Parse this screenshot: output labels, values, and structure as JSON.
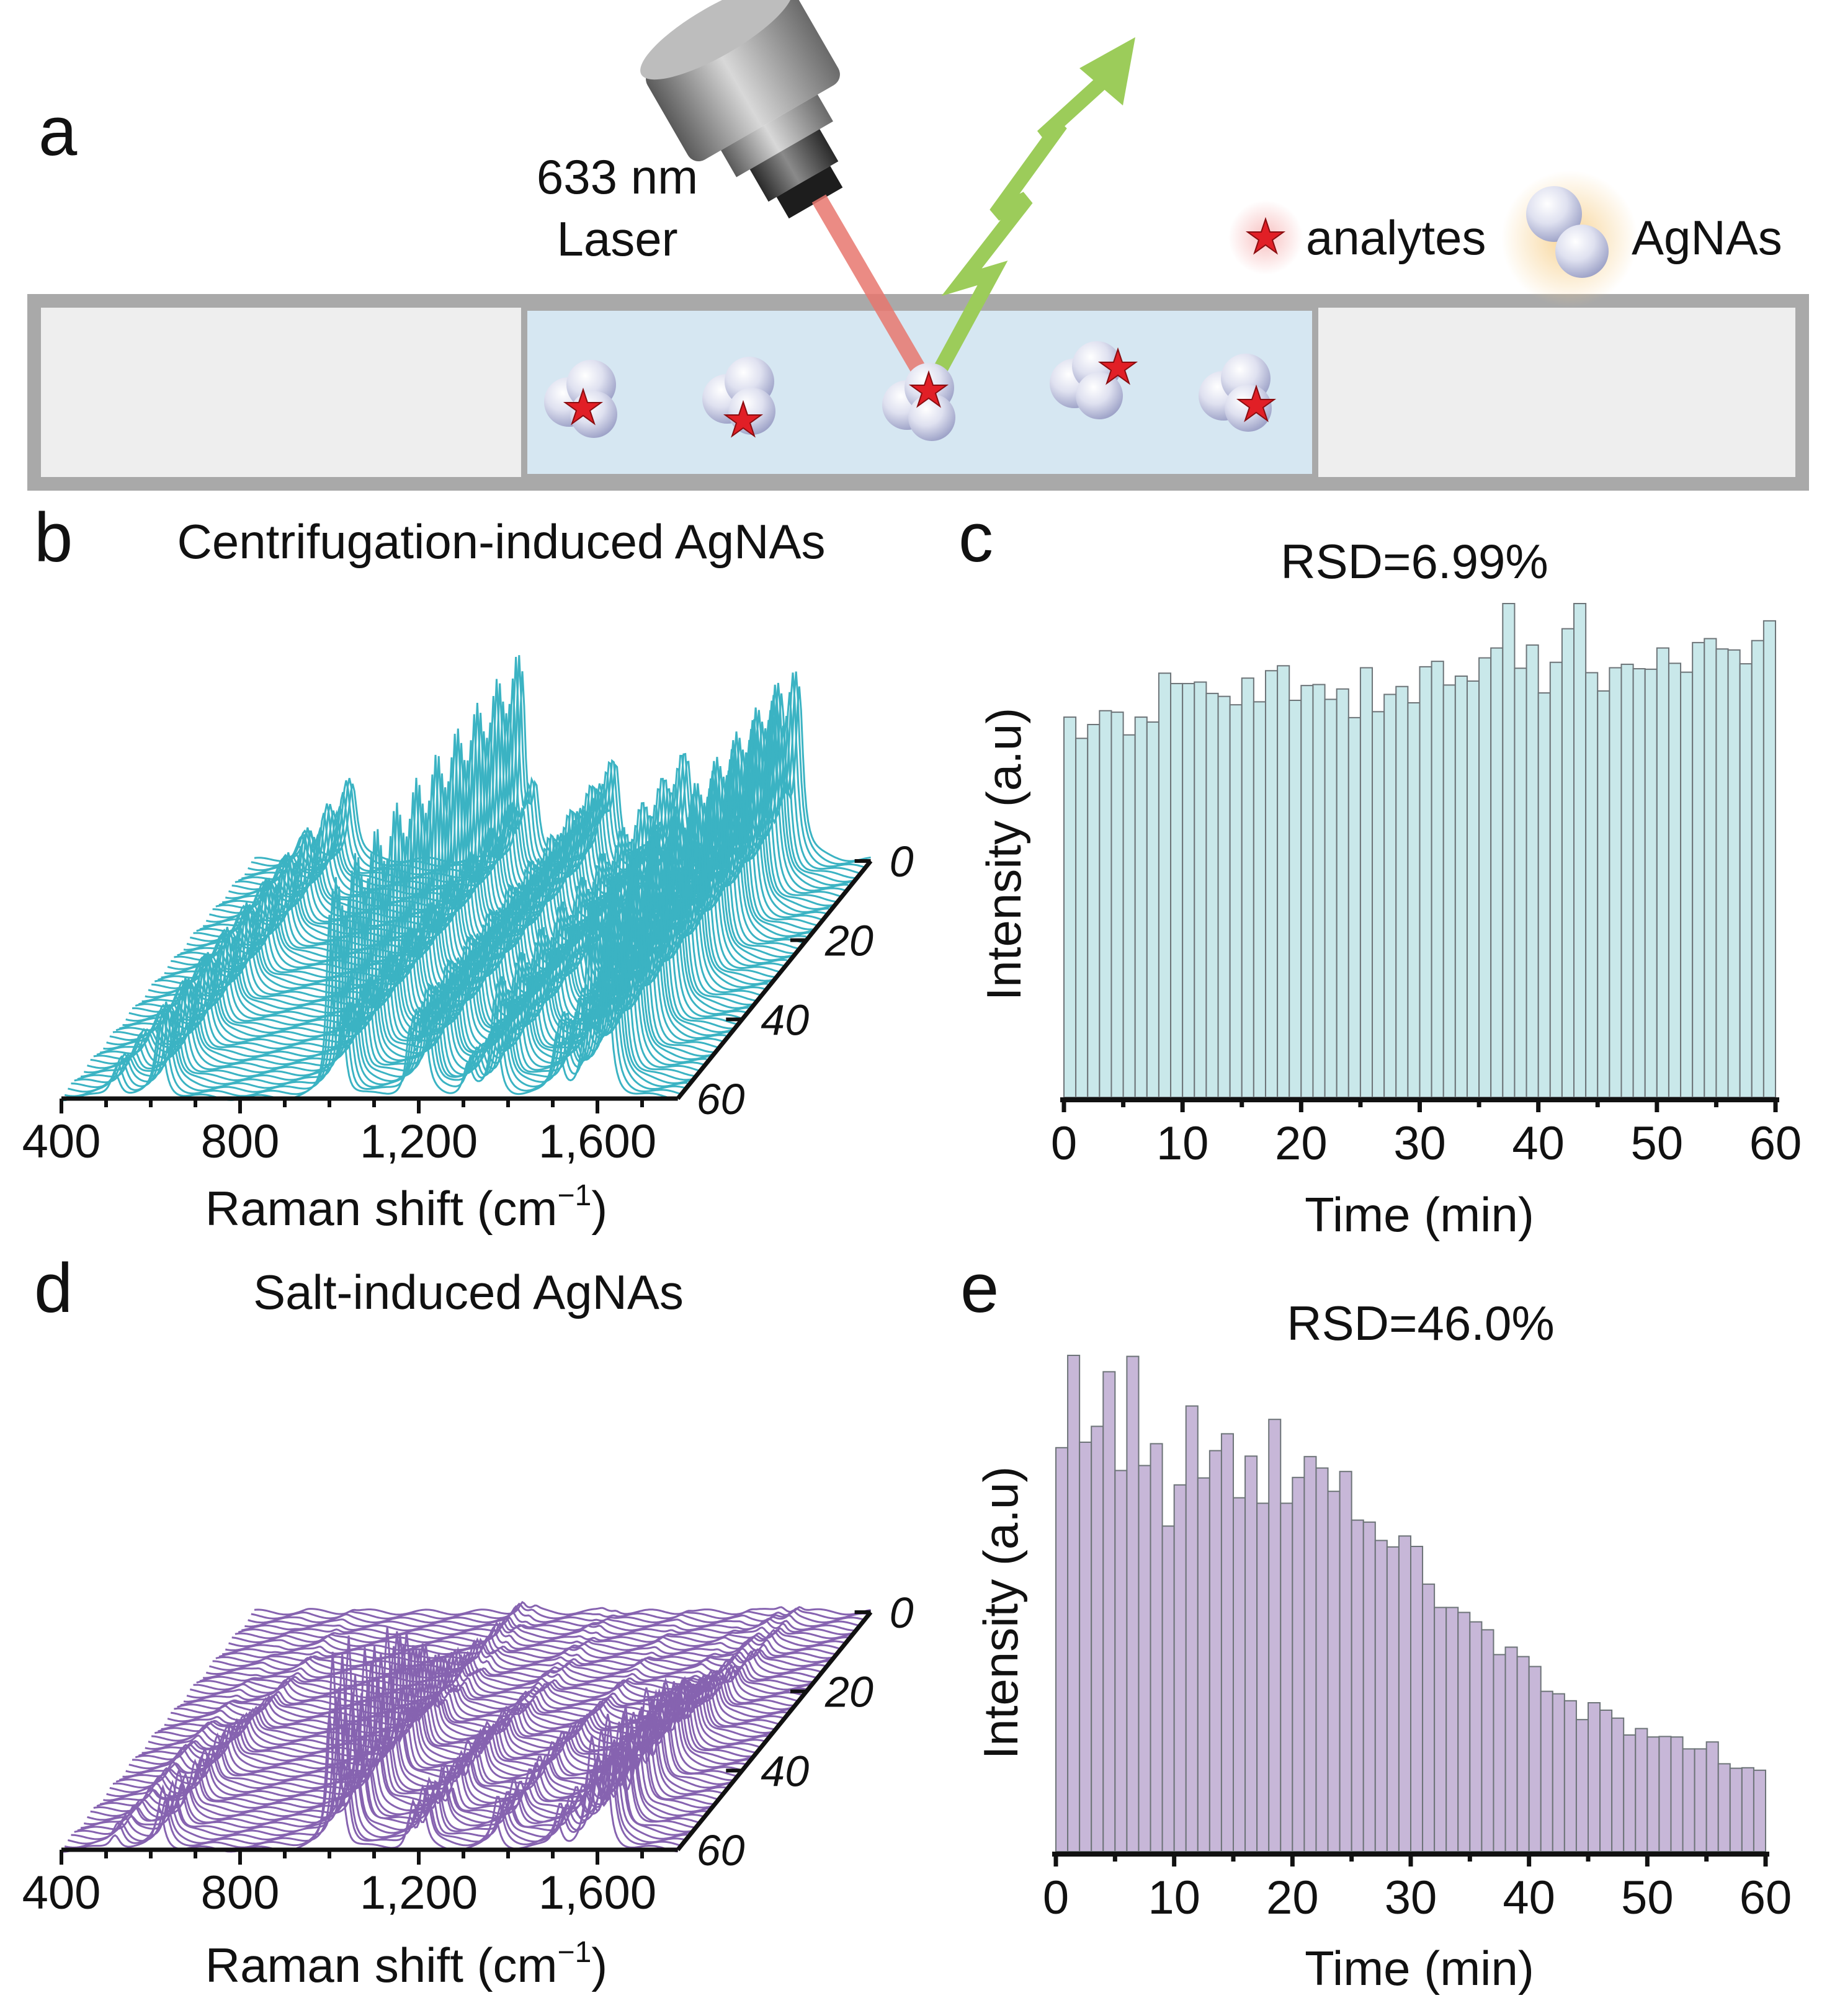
{
  "panel_a": {
    "label": "a",
    "laser_line1": "633 nm",
    "laser_line2": "Laser",
    "legend_analytes": "analytes",
    "legend_agnas": "AgNAs",
    "colors": {
      "beam": "#e8776e",
      "scatter": "#9ccc5a",
      "star": "#e11f26",
      "solution": "#d6e7f2",
      "channel": "#a9a9a9"
    }
  },
  "chart_data": [
    {
      "id": "b",
      "panel_label": "b",
      "type": "waterfall",
      "title": "Centrifugation-induced AgNAs",
      "xlabel": "Raman shift (cm⁻¹)",
      "xlabel_main": "Raman shift (cm",
      "xlabel_sup": "−1",
      "xlabel_close": ")",
      "xlim": [
        400,
        1780
      ],
      "xticks": [
        "400",
        "800",
        "1,200",
        "1,600"
      ],
      "xtick_values": [
        400,
        800,
        1200,
        1600
      ],
      "zticks": [
        "0",
        "20",
        "40",
        "60"
      ],
      "ztick_values": [
        0,
        20,
        40,
        60
      ],
      "zlim": [
        0,
        60
      ],
      "peaks_cm1": [
        [
          520,
          0.15,
          14
        ],
        [
          620,
          0.42,
          12
        ],
        [
          1000,
          1.0,
          8
        ],
        [
          1030,
          0.35,
          9
        ],
        [
          1180,
          0.35,
          10
        ],
        [
          1210,
          0.5,
          10
        ],
        [
          1310,
          0.18,
          12
        ],
        [
          1370,
          0.55,
          10
        ],
        [
          1510,
          0.35,
          12
        ],
        [
          1580,
          0.85,
          10
        ],
        [
          1620,
          0.9,
          10
        ]
      ],
      "intensity_trend": "constant",
      "color": "#3bb3c3"
    },
    {
      "id": "c",
      "panel_label": "c",
      "type": "bar",
      "title": "RSD=6.99%",
      "xlabel": "Time (min)",
      "ylabel": "Intensity (a.u)",
      "xlim": [
        0,
        60
      ],
      "xticks": [
        "0",
        "10",
        "20",
        "30",
        "40",
        "50",
        "60"
      ],
      "ylim": [
        0,
        100
      ],
      "values": [
        77.0,
        72.7,
        75.5,
        78.3,
        78.0,
        73.4,
        77.0,
        76.0,
        85.9,
        83.8,
        83.8,
        84.1,
        81.8,
        81.2,
        79.5,
        84.9,
        80.1,
        86.4,
        87.4,
        80.4,
        83.4,
        83.6,
        80.6,
        82.7,
        76.9,
        87.0,
        78.1,
        81.6,
        83.2,
        79.9,
        87.2,
        88.3,
        83.5,
        85.3,
        84.3,
        89.0,
        91.0,
        100,
        86.9,
        91.6,
        81.9,
        88.1,
        94.9,
        100,
        86.0,
        82.3,
        87.0,
        87.7,
        86.8,
        86.7,
        91.0,
        87.9,
        86.1,
        92.1,
        92.9,
        90.8,
        90.6,
        87.8,
        92.5,
        96.5
      ],
      "color": "#c9e8ea"
    },
    {
      "id": "d",
      "panel_label": "d",
      "type": "waterfall",
      "title": "Salt-induced AgNAs",
      "xlabel_main": "Raman shift (cm",
      "xlabel_sup": "−1",
      "xlabel_close": ")",
      "xlim": [
        400,
        1780
      ],
      "xticks": [
        "400",
        "800",
        "1,200",
        "1,600"
      ],
      "xtick_values": [
        400,
        800,
        1200,
        1600
      ],
      "zticks": [
        "0",
        "20",
        "40",
        "60"
      ],
      "ztick_values": [
        0,
        20,
        40,
        60
      ],
      "zlim": [
        0,
        60
      ],
      "peaks_cm1": [
        [
          520,
          0.12,
          14
        ],
        [
          620,
          0.3,
          12
        ],
        [
          1000,
          1.0,
          9
        ],
        [
          1030,
          0.35,
          9
        ],
        [
          1180,
          0.22,
          10
        ],
        [
          1210,
          0.28,
          10
        ],
        [
          1370,
          0.25,
          12
        ],
        [
          1510,
          0.2,
          12
        ],
        [
          1580,
          0.55,
          12
        ],
        [
          1620,
          0.6,
          10
        ]
      ],
      "intensity_trend": "decreasing",
      "color": "#8663b0"
    },
    {
      "id": "e",
      "panel_label": "e",
      "type": "bar",
      "title": "RSD=46.0%",
      "xlabel": "Time (min)",
      "ylabel": "Intensity (a.u)",
      "xlim": [
        0,
        60
      ],
      "xticks": [
        "0",
        "10",
        "20",
        "30",
        "40",
        "50",
        "60"
      ],
      "ylim": [
        0,
        100
      ],
      "values": [
        81.4,
        100,
        82.5,
        85.7,
        96.7,
        76.8,
        99.8,
        77.8,
        82.2,
        65.6,
        73.9,
        89.8,
        75.3,
        80.8,
        84.2,
        71.3,
        79.7,
        70.2,
        87.1,
        70.2,
        75.4,
        79.6,
        77.3,
        72.6,
        76.6,
        66.8,
        66.4,
        62.7,
        61.4,
        63.6,
        61.5,
        53.9,
        49.2,
        49.2,
        48.2,
        46.3,
        44.7,
        39.7,
        41.2,
        39.3,
        37.3,
        32.3,
        31.8,
        30.4,
        26.6,
        30.0,
        28.5,
        26.9,
        23.5,
        24.8,
        23.1,
        23.2,
        23.1,
        20.7,
        20.7,
        22.1,
        17.7,
        16.8,
        16.9,
        16.4
      ],
      "color": "#c7b7d8"
    }
  ]
}
